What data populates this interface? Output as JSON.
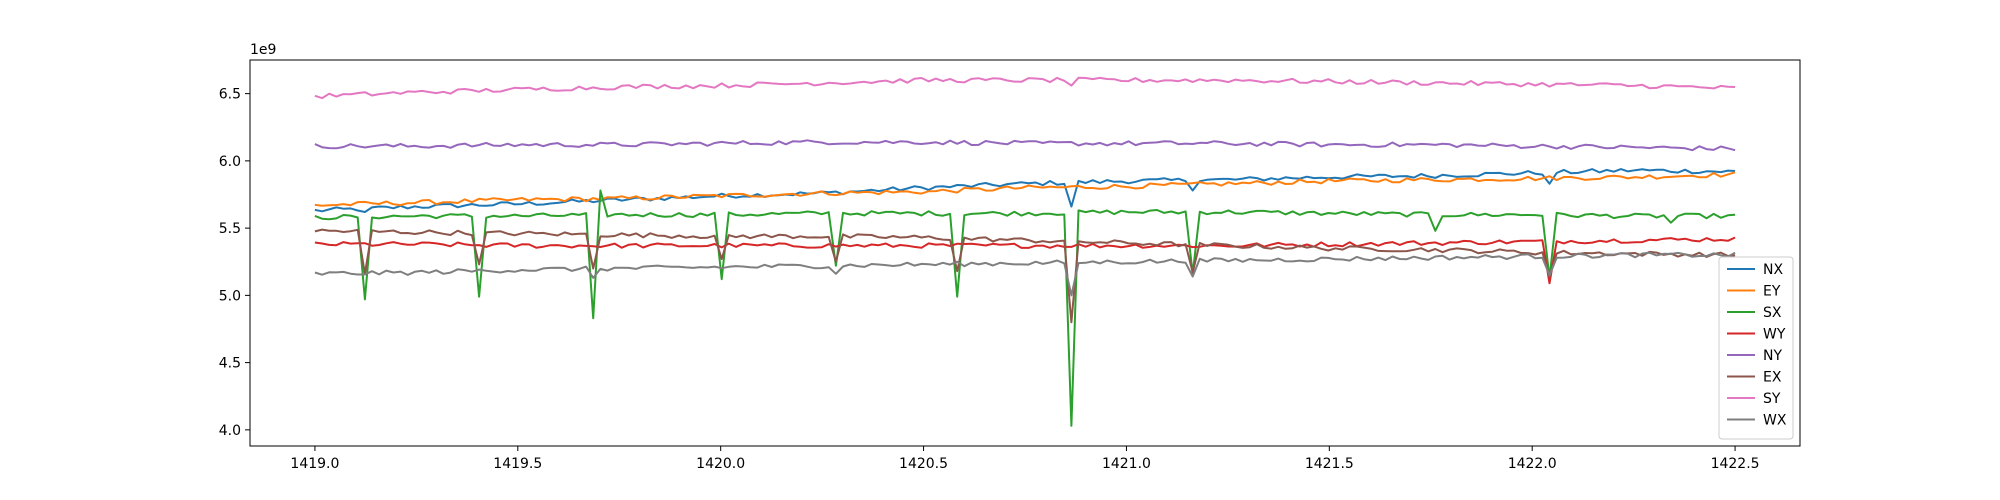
{
  "chart_data": {
    "type": "line",
    "title": "",
    "xlabel": "",
    "ylabel": "",
    "y_offset_label": "1e9",
    "xlim": [
      1418.84,
      1422.66
    ],
    "ylim": [
      3.88,
      6.75
    ],
    "x_ticks": [
      1419.0,
      1419.5,
      1420.0,
      1420.5,
      1421.0,
      1421.5,
      1422.0,
      1422.5
    ],
    "x_tick_labels": [
      "1419.0",
      "1419.5",
      "1420.0",
      "1420.5",
      "1421.0",
      "1421.5",
      "1422.0",
      "1422.5"
    ],
    "y_ticks": [
      4.0,
      4.5,
      5.0,
      5.5,
      6.0,
      6.5
    ],
    "y_tick_labels": [
      "4.0",
      "4.5",
      "5.0",
      "5.5",
      "6.0",
      "6.5"
    ],
    "grid": false,
    "legend_position": "lower-right",
    "x_range": [
      1419.0,
      1422.5
    ],
    "n_points": 200,
    "series": [
      {
        "name": "NX",
        "color": "#1f77b4",
        "x": [
          1419.0,
          1419.25,
          1419.5,
          1419.75,
          1420.0,
          1420.25,
          1420.5,
          1420.75,
          1421.0,
          1421.25,
          1421.5,
          1421.75,
          1422.0,
          1422.25,
          1422.5
        ],
        "y": [
          5.63,
          5.66,
          5.68,
          5.71,
          5.74,
          5.76,
          5.8,
          5.83,
          5.85,
          5.86,
          5.88,
          5.89,
          5.91,
          5.93,
          5.92
        ],
        "dips": [
          [
            1419.12,
            5.62
          ],
          [
            1420.87,
            5.66
          ],
          [
            1421.17,
            5.78
          ],
          [
            1422.05,
            5.83
          ]
        ]
      },
      {
        "name": "EY",
        "color": "#ff7f0e",
        "x": [
          1419.0,
          1419.25,
          1419.5,
          1419.75,
          1420.0,
          1420.25,
          1420.5,
          1420.75,
          1421.0,
          1421.25,
          1421.5,
          1421.75,
          1422.0,
          1422.25,
          1422.5
        ],
        "y": [
          5.67,
          5.69,
          5.71,
          5.72,
          5.74,
          5.76,
          5.77,
          5.8,
          5.81,
          5.83,
          5.85,
          5.86,
          5.87,
          5.88,
          5.9
        ],
        "dips": []
      },
      {
        "name": "SX",
        "color": "#2ca02c",
        "x": [
          1419.0,
          1419.25,
          1419.5,
          1419.75,
          1420.0,
          1420.25,
          1420.5,
          1420.75,
          1421.0,
          1421.25,
          1421.5,
          1421.75,
          1422.0,
          1422.25,
          1422.5
        ],
        "y": [
          5.58,
          5.59,
          5.59,
          5.6,
          5.6,
          5.61,
          5.61,
          5.61,
          5.62,
          5.62,
          5.61,
          5.6,
          5.6,
          5.59,
          5.59
        ],
        "dips": [
          [
            1419.12,
            4.97
          ],
          [
            1419.41,
            4.99
          ],
          [
            1419.69,
            4.83
          ],
          [
            1420.0,
            5.12
          ],
          [
            1420.29,
            5.22
          ],
          [
            1420.59,
            4.99
          ],
          [
            1420.87,
            4.03
          ],
          [
            1421.17,
            5.16
          ],
          [
            1421.76,
            5.48
          ],
          [
            1422.05,
            5.13
          ],
          [
            1422.34,
            5.54
          ]
        ],
        "spikes": [
          [
            1419.71,
            5.78
          ]
        ]
      },
      {
        "name": "WY",
        "color": "#d62728",
        "x": [
          1419.0,
          1419.25,
          1419.5,
          1419.75,
          1420.0,
          1420.25,
          1420.5,
          1420.75,
          1421.0,
          1421.25,
          1421.5,
          1421.75,
          1422.0,
          1422.25,
          1422.5
        ],
        "y": [
          5.38,
          5.38,
          5.37,
          5.37,
          5.37,
          5.37,
          5.37,
          5.37,
          5.37,
          5.37,
          5.38,
          5.39,
          5.4,
          5.41,
          5.42
        ],
        "dips": [
          [
            1420.87,
            5.36
          ],
          [
            1422.05,
            5.09
          ]
        ],
        "spikes": [
          [
            1420.87,
            5.45
          ]
        ]
      },
      {
        "name": "NY",
        "color": "#9467bd",
        "x": [
          1419.0,
          1419.25,
          1419.5,
          1419.75,
          1420.0,
          1420.25,
          1420.5,
          1420.75,
          1421.0,
          1421.25,
          1421.5,
          1421.75,
          1422.0,
          1422.25,
          1422.5
        ],
        "y": [
          6.11,
          6.11,
          6.12,
          6.12,
          6.13,
          6.14,
          6.14,
          6.13,
          6.13,
          6.13,
          6.12,
          6.12,
          6.11,
          6.1,
          6.09
        ],
        "dips": []
      },
      {
        "name": "EX",
        "color": "#8c564b",
        "x": [
          1419.0,
          1419.25,
          1419.5,
          1419.75,
          1420.0,
          1420.25,
          1420.5,
          1420.75,
          1421.0,
          1421.25,
          1421.5,
          1421.75,
          1422.0,
          1422.25,
          1422.5
        ],
        "y": [
          5.48,
          5.47,
          5.46,
          5.45,
          5.44,
          5.44,
          5.43,
          5.41,
          5.39,
          5.37,
          5.35,
          5.34,
          5.32,
          5.31,
          5.3
        ],
        "dips": [
          [
            1419.12,
            5.16
          ],
          [
            1419.41,
            5.23
          ],
          [
            1419.69,
            5.2
          ],
          [
            1420.0,
            5.27
          ],
          [
            1420.29,
            5.25
          ],
          [
            1420.59,
            5.18
          ],
          [
            1420.87,
            4.8
          ],
          [
            1421.17,
            5.17
          ],
          [
            1422.05,
            5.14
          ]
        ]
      },
      {
        "name": "SY",
        "color": "#e377c2",
        "x": [
          1419.0,
          1419.25,
          1419.5,
          1419.75,
          1420.0,
          1420.25,
          1420.5,
          1420.75,
          1421.0,
          1421.25,
          1421.5,
          1421.75,
          1422.0,
          1422.25,
          1422.5
        ],
        "y": [
          6.48,
          6.51,
          6.53,
          6.55,
          6.56,
          6.58,
          6.6,
          6.6,
          6.6,
          6.6,
          6.59,
          6.58,
          6.57,
          6.56,
          6.54
        ],
        "dips": [
          [
            1420.87,
            6.56
          ]
        ]
      },
      {
        "name": "WX",
        "color": "#7f7f7f",
        "x": [
          1419.0,
          1419.25,
          1419.5,
          1419.75,
          1420.0,
          1420.25,
          1420.5,
          1420.75,
          1421.0,
          1421.25,
          1421.5,
          1421.75,
          1422.0,
          1422.25,
          1422.5
        ],
        "y": [
          5.16,
          5.17,
          5.19,
          5.2,
          5.21,
          5.22,
          5.23,
          5.24,
          5.25,
          5.26,
          5.27,
          5.28,
          5.29,
          5.3,
          5.3
        ],
        "dips": [
          [
            1419.69,
            5.13
          ],
          [
            1420.29,
            5.16
          ],
          [
            1420.87,
            5.0
          ],
          [
            1421.17,
            5.14
          ],
          [
            1422.05,
            5.15
          ]
        ]
      }
    ]
  }
}
